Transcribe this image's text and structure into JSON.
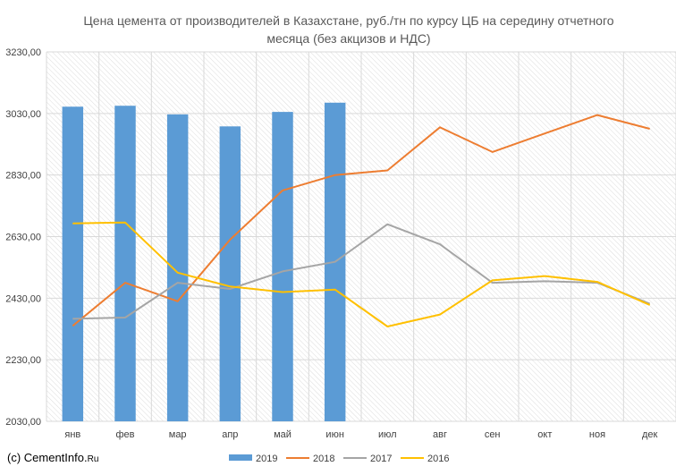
{
  "chart_data": {
    "type": "bar",
    "title_line1": "Цена цемента от производителей в Казахстане, руб./тн по курсу ЦБ на середину отчетного",
    "title_line2": "месяца (без акцизов и НДС)",
    "categories": [
      "янв",
      "фев",
      "мар",
      "апр",
      "май",
      "июн",
      "июл",
      "авг",
      "сен",
      "окт",
      "ноя",
      "дек"
    ],
    "y_ticks": [
      "2030,00",
      "2230,00",
      "2430,00",
      "2630,00",
      "2830,00",
      "3030,00",
      "3230,00"
    ],
    "ylim": [
      2030,
      3230
    ],
    "grid": true,
    "legend_position": "bottom",
    "series": [
      {
        "name": "2019",
        "kind": "bar",
        "color": "#5b9bd5",
        "values": [
          3052,
          3055,
          3027,
          2988,
          3035,
          3065,
          null,
          null,
          null,
          null,
          null,
          null
        ]
      },
      {
        "name": "2018",
        "kind": "line",
        "color": "#ed7d31",
        "values": [
          2340,
          2480,
          2420,
          2620,
          2780,
          2830,
          2845,
          2985,
          2905,
          2965,
          3025,
          2980
        ]
      },
      {
        "name": "2017",
        "kind": "line",
        "color": "#a5a5a5",
        "values": [
          2363,
          2367,
          2480,
          2460,
          2517,
          2548,
          2670,
          2605,
          2480,
          2485,
          2480,
          2412
        ]
      },
      {
        "name": "2016",
        "kind": "line",
        "color": "#ffc000",
        "values": [
          2673,
          2676,
          2513,
          2468,
          2450,
          2458,
          2338,
          2377,
          2488,
          2502,
          2483,
          2408
        ]
      }
    ]
  },
  "footer": {
    "prefix": "(c) CementInfo.",
    "suffix": "Ru"
  }
}
